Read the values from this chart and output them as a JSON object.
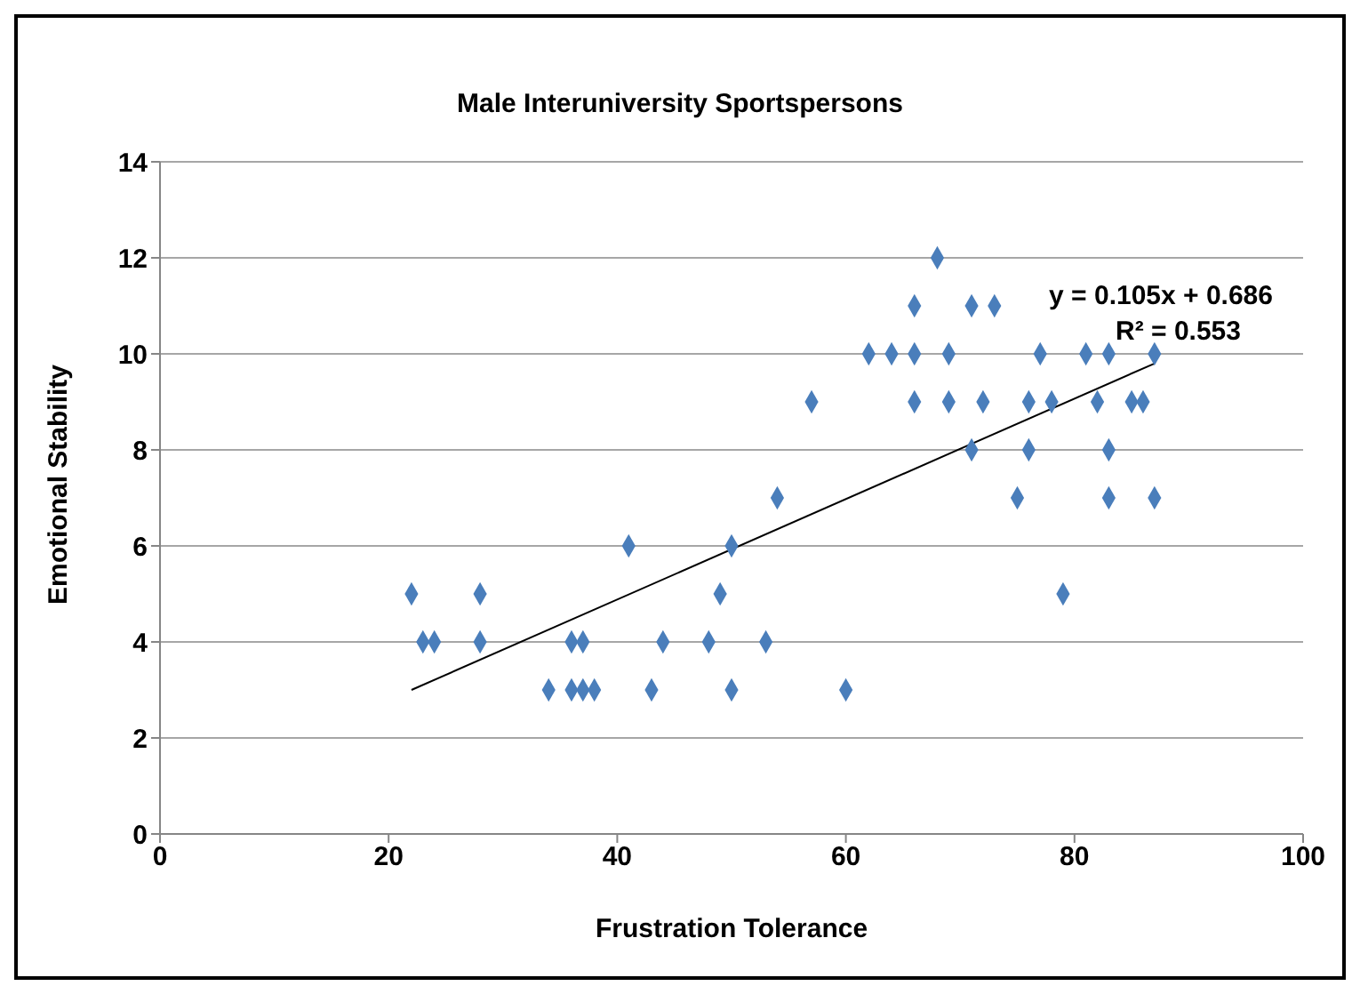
{
  "chart_data": {
    "type": "scatter",
    "title": "Male Interuniversity Sportspersons",
    "xlabel": "Frustration Tolerance",
    "ylabel": "Emotional Stability",
    "xlim": [
      0,
      100
    ],
    "xticks": [
      0,
      20,
      40,
      60,
      80,
      100
    ],
    "ylim": [
      0,
      14
    ],
    "yticks": [
      0,
      2,
      4,
      6,
      8,
      10,
      12,
      14
    ],
    "grid": "y",
    "annotations": [
      "y = 0.105x + 0.686",
      "R² = 0.553"
    ],
    "series": [
      {
        "marker": "diamond",
        "color": "#4a7ebb",
        "x": [
          22,
          28,
          49,
          79,
          23,
          24,
          28,
          36,
          37,
          44,
          48,
          53,
          34,
          36,
          37,
          38,
          43,
          50,
          60,
          41,
          50,
          54,
          75,
          83,
          87,
          57,
          66,
          69,
          72,
          76,
          78,
          82,
          85,
          86,
          62,
          64,
          66,
          69,
          77,
          81,
          83,
          87,
          66,
          71,
          73,
          68,
          71,
          76,
          83
        ],
        "values": [
          5,
          5,
          5,
          5,
          4,
          4,
          4,
          4,
          4,
          4,
          4,
          4,
          3,
          3,
          3,
          3,
          3,
          3,
          3,
          6,
          6,
          7,
          7,
          7,
          7,
          9,
          9,
          9,
          9,
          9,
          9,
          9,
          9,
          9,
          10,
          10,
          10,
          10,
          10,
          10,
          10,
          10,
          11,
          11,
          11,
          12,
          8,
          8,
          8
        ]
      },
      {
        "type": "line",
        "marker": "none",
        "color": "#000000",
        "x": [
          22,
          87
        ],
        "values": [
          3.0,
          9.8
        ]
      }
    ]
  }
}
